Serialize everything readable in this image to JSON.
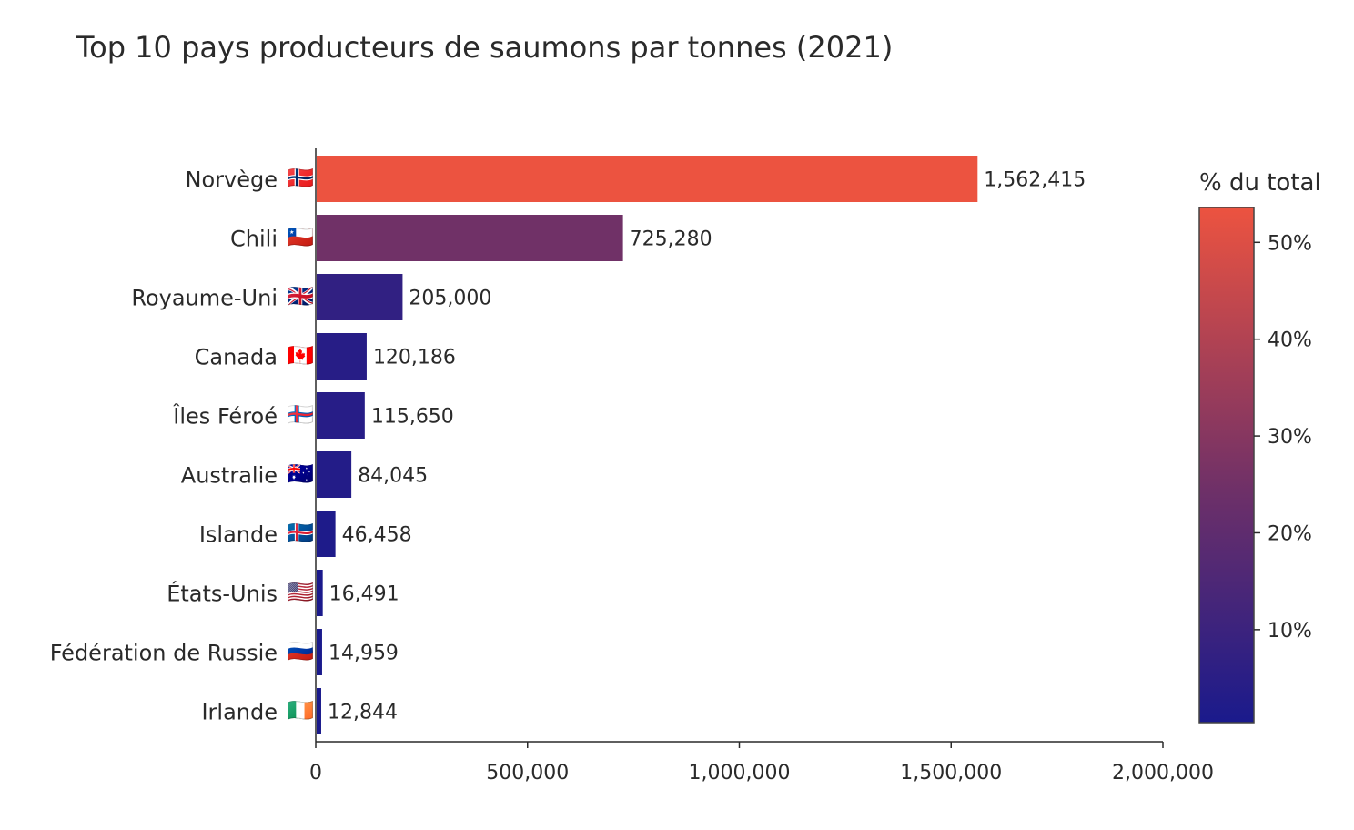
{
  "chart_data": {
    "type": "bar",
    "orientation": "horizontal",
    "title": "Top 10 pays producteurs de saumons par tonnes (2021)",
    "xlabel": "",
    "ylabel": "",
    "xlim": [
      0,
      2000000
    ],
    "xticks": [
      {
        "value": 0,
        "label": "0"
      },
      {
        "value": 500000,
        "label": "500,000"
      },
      {
        "value": 1000000,
        "label": "1,000,000"
      },
      {
        "value": 1500000,
        "label": "1,500,000"
      },
      {
        "value": 2000000,
        "label": "2,000,000"
      }
    ],
    "categories": [
      {
        "name": "Norvège",
        "flag": "🇳🇴",
        "value": 1562415,
        "label": "1,562,415",
        "pct": 53.6
      },
      {
        "name": "Chili",
        "flag": "🇨🇱",
        "value": 725280,
        "label": "725,280",
        "pct": 24.9
      },
      {
        "name": "Royaume-Uni",
        "flag": "🇬🇧",
        "value": 205000,
        "label": "205,000",
        "pct": 7.0
      },
      {
        "name": "Canada",
        "flag": "🇨🇦",
        "value": 120186,
        "label": "120,186",
        "pct": 4.1
      },
      {
        "name": "Îles Féroé",
        "flag": "🇫🇴",
        "value": 115650,
        "label": "115,650",
        "pct": 4.0
      },
      {
        "name": "Australie",
        "flag": "🇦🇺",
        "value": 84045,
        "label": "84,045",
        "pct": 2.9
      },
      {
        "name": "Islande",
        "flag": "🇮🇸",
        "value": 46458,
        "label": "46,458",
        "pct": 1.6
      },
      {
        "name": "États-Unis",
        "flag": "🇺🇸",
        "value": 16491,
        "label": "16,491",
        "pct": 0.6
      },
      {
        "name": "Fédération de Russie",
        "flag": "🇷🇺",
        "value": 14959,
        "label": "14,959",
        "pct": 0.5
      },
      {
        "name": "Irlande",
        "flag": "🇮🇪",
        "value": 12844,
        "label": "12,844",
        "pct": 0.4
      }
    ],
    "colorbar": {
      "title": "% du total",
      "range": [
        0.4,
        53.6
      ],
      "ticks": [
        {
          "value": 10,
          "label": "10%"
        },
        {
          "value": 20,
          "label": "20%"
        },
        {
          "value": 30,
          "label": "30%"
        },
        {
          "value": 40,
          "label": "40%"
        },
        {
          "value": 50,
          "label": "50%"
        }
      ],
      "color_low": "#1a1a8c",
      "color_mid": "#6e3068",
      "color_high": "#ec5340"
    }
  }
}
